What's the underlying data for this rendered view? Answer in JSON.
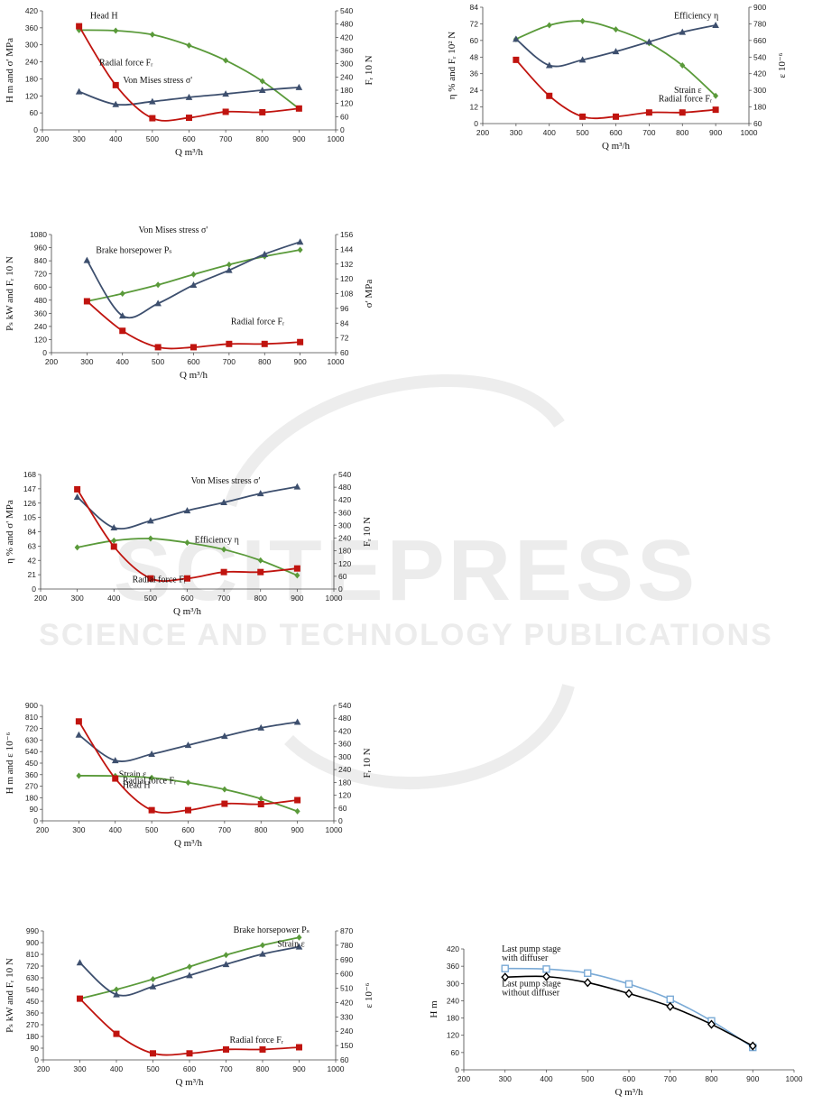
{
  "watermark": {
    "line1": "SCITEPRESS",
    "line2": "SCIENCE AND TECHNOLOGY PUBLICATIONS"
  },
  "chart_data": [
    {
      "type": "line",
      "xlabel": "Q m³/h",
      "ylabel_left": "H m and σ' MPa",
      "ylabel_right": "Fᵣ 10 N",
      "x_ticks": [
        200,
        300,
        400,
        500,
        600,
        700,
        800,
        900,
        1000
      ],
      "y_left_ticks": [
        0,
        60,
        120,
        180,
        240,
        300,
        360,
        420
      ],
      "y_right_ticks": [
        0,
        60,
        120,
        180,
        240,
        300,
        360,
        420,
        480,
        540
      ],
      "x": [
        300,
        400,
        500,
        600,
        700,
        800,
        900
      ],
      "series": [
        {
          "name": "Head H",
          "axis": "left",
          "marker": "diamond",
          "color": "#5a9a3a",
          "values": [
            352,
            350,
            336,
            298,
            245,
            172,
            75
          ]
        },
        {
          "name": "Von Mises stress σ'",
          "axis": "left",
          "marker": "triangle",
          "color": "#3d4f6e",
          "values": [
            135,
            90,
            100,
            115,
            127,
            140,
            150
          ]
        },
        {
          "name": "Radial force Fᵣ",
          "axis": "right",
          "marker": "square",
          "color": "#c0140f",
          "values": [
            470,
            203,
            53,
            55,
            82,
            80,
            97
          ]
        }
      ]
    },
    {
      "type": "line",
      "xlabel": "Q m³/h",
      "ylabel_left": "η % and Fᵣ 10² N",
      "ylabel_right": "ε 10⁻⁶",
      "x_ticks": [
        200,
        300,
        400,
        500,
        600,
        700,
        800,
        900,
        1000
      ],
      "y_left_ticks": [
        0,
        12,
        24,
        36,
        48,
        60,
        72,
        84
      ],
      "y_right_ticks": [
        60,
        180,
        300,
        420,
        540,
        660,
        780,
        900
      ],
      "x": [
        300,
        400,
        500,
        600,
        700,
        800,
        900
      ],
      "series": [
        {
          "name": "Efficiency η",
          "axis": "left",
          "marker": "diamond",
          "color": "#5a9a3a",
          "values": [
            61,
            71,
            74,
            68,
            58,
            42,
            20
          ]
        },
        {
          "name": "Strain ε",
          "axis": "left",
          "marker": "triangle",
          "color": "#3d4f6e",
          "values": [
            61,
            42,
            46,
            52,
            59,
            66,
            71
          ]
        },
        {
          "name": "Radial force Fᵣ",
          "axis": "left",
          "marker": "square",
          "color": "#c0140f",
          "values": [
            46,
            20,
            5,
            5,
            8,
            8,
            10
          ]
        }
      ]
    },
    {
      "type": "line",
      "xlabel": "Q m³/h",
      "ylabel_left": "Pₛ kW and Fᵣ 10 N",
      "ylabel_right": "σ' MPa",
      "x_ticks": [
        200,
        300,
        400,
        500,
        600,
        700,
        800,
        900,
        1000
      ],
      "y_left_ticks": [
        0,
        120,
        240,
        360,
        480,
        600,
        720,
        840,
        960,
        1080
      ],
      "y_right_ticks": [
        60,
        72,
        84,
        96,
        108,
        120,
        132,
        144,
        156
      ],
      "x": [
        300,
        400,
        500,
        600,
        700,
        800,
        900
      ],
      "series": [
        {
          "name": "Brake horsepower Pₛ",
          "axis": "left",
          "marker": "diamond",
          "color": "#5a9a3a",
          "values": [
            470,
            540,
            620,
            715,
            805,
            880,
            940
          ]
        },
        {
          "name": "Von Mises stress σ'",
          "axis": "right",
          "marker": "triangle",
          "color": "#3d4f6e",
          "values": [
            135,
            90,
            100,
            115,
            127,
            140,
            150
          ]
        },
        {
          "name": "Radial force Fᵣ",
          "axis": "left",
          "marker": "square",
          "color": "#c0140f",
          "values": [
            470,
            200,
            50,
            50,
            80,
            80,
            97
          ]
        }
      ]
    },
    {
      "type": "line",
      "xlabel": "Q m³/h",
      "ylabel_left": "η % and σ' MPa",
      "ylabel_right": "Fᵣ 10 N",
      "x_ticks": [
        200,
        300,
        400,
        500,
        600,
        700,
        800,
        900,
        1000
      ],
      "y_left_ticks": [
        0,
        21,
        42,
        63,
        84,
        105,
        126,
        147,
        168
      ],
      "y_right_ticks": [
        0,
        60,
        120,
        180,
        240,
        300,
        360,
        420,
        480,
        540
      ],
      "x": [
        300,
        400,
        500,
        600,
        700,
        800,
        900
      ],
      "series": [
        {
          "name": "Von Mises stress σ'",
          "axis": "left",
          "marker": "triangle",
          "color": "#3d4f6e",
          "values": [
            135,
            90,
            100,
            115,
            127,
            140,
            150
          ]
        },
        {
          "name": "Efficiency η",
          "axis": "left",
          "marker": "diamond",
          "color": "#5a9a3a",
          "values": [
            61,
            71,
            74,
            68,
            58,
            42,
            20
          ]
        },
        {
          "name": "Radial force Fᵣ",
          "axis": "right",
          "marker": "square",
          "color": "#c0140f",
          "values": [
            470,
            200,
            50,
            50,
            80,
            80,
            97
          ]
        }
      ]
    },
    {
      "type": "line",
      "xlabel": "Q m³/h",
      "ylabel_left": "H m and ε 10⁻⁶",
      "ylabel_right": "Fᵣ 10 N",
      "x_ticks": [
        200,
        300,
        400,
        500,
        600,
        700,
        800,
        900,
        1000
      ],
      "y_left_ticks": [
        0,
        90,
        180,
        270,
        360,
        450,
        540,
        630,
        720,
        810,
        900
      ],
      "y_right_ticks": [
        0,
        60,
        120,
        180,
        240,
        300,
        360,
        420,
        480,
        540
      ],
      "x": [
        300,
        400,
        500,
        600,
        700,
        800,
        900
      ],
      "series": [
        {
          "name": "Strain ε",
          "axis": "left",
          "marker": "triangle",
          "color": "#3d4f6e",
          "values": [
            670,
            470,
            520,
            590,
            660,
            725,
            770
          ]
        },
        {
          "name": "Head H",
          "axis": "left",
          "marker": "diamond",
          "color": "#5a9a3a",
          "values": [
            352,
            350,
            336,
            298,
            245,
            172,
            75
          ]
        },
        {
          "name": "Radial force Fᵣ",
          "axis": "right",
          "marker": "square",
          "color": "#c0140f",
          "values": [
            465,
            198,
            50,
            50,
            80,
            78,
            97
          ]
        }
      ]
    },
    {
      "type": "line",
      "xlabel": "Q m³/h",
      "ylabel_left": "Pₛ kW and Fᵣ 10 N",
      "ylabel_right": "ε 10⁻⁶",
      "x_ticks": [
        200,
        300,
        400,
        500,
        600,
        700,
        800,
        900,
        1000
      ],
      "y_left_ticks": [
        0,
        90,
        180,
        270,
        360,
        450,
        540,
        630,
        720,
        810,
        900,
        990
      ],
      "y_right_ticks": [
        60,
        150,
        240,
        330,
        420,
        510,
        600,
        690,
        780,
        870
      ],
      "x": [
        300,
        400,
        500,
        600,
        700,
        800,
        900
      ],
      "series": [
        {
          "name": "Brake horsepower Pₛ",
          "axis": "left",
          "marker": "diamond",
          "color": "#5a9a3a",
          "values": [
            470,
            540,
            620,
            715,
            805,
            880,
            940
          ]
        },
        {
          "name": "Strain ε",
          "axis": "right",
          "marker": "triangle",
          "color": "#3d4f6e",
          "values": [
            670,
            470,
            520,
            590,
            660,
            725,
            770
          ]
        },
        {
          "name": "Radial force Fᵣ",
          "axis": "left",
          "marker": "square",
          "color": "#c0140f",
          "values": [
            470,
            200,
            50,
            50,
            80,
            80,
            97
          ]
        }
      ]
    },
    {
      "type": "line",
      "xlabel": "Q m³/h",
      "ylabel_left": "H m",
      "ylabel_right": "",
      "x_ticks": [
        200,
        300,
        400,
        500,
        600,
        700,
        800,
        900,
        1000
      ],
      "y_left_ticks": [
        0,
        60,
        120,
        180,
        240,
        300,
        360,
        420
      ],
      "y_right_ticks": [],
      "x": [
        300,
        400,
        500,
        600,
        700,
        800,
        900
      ],
      "series": [
        {
          "name": "Last pump stage with diffuser",
          "axis": "left",
          "marker": "hollow-square",
          "color": "#7aaad6",
          "values": [
            352,
            350,
            336,
            298,
            245,
            170,
            78
          ]
        },
        {
          "name": "Last pump stage without diffuser",
          "axis": "left",
          "marker": "hollow-diamond",
          "color": "#000000",
          "values": [
            322,
            324,
            303,
            265,
            220,
            158,
            83
          ]
        }
      ]
    }
  ]
}
